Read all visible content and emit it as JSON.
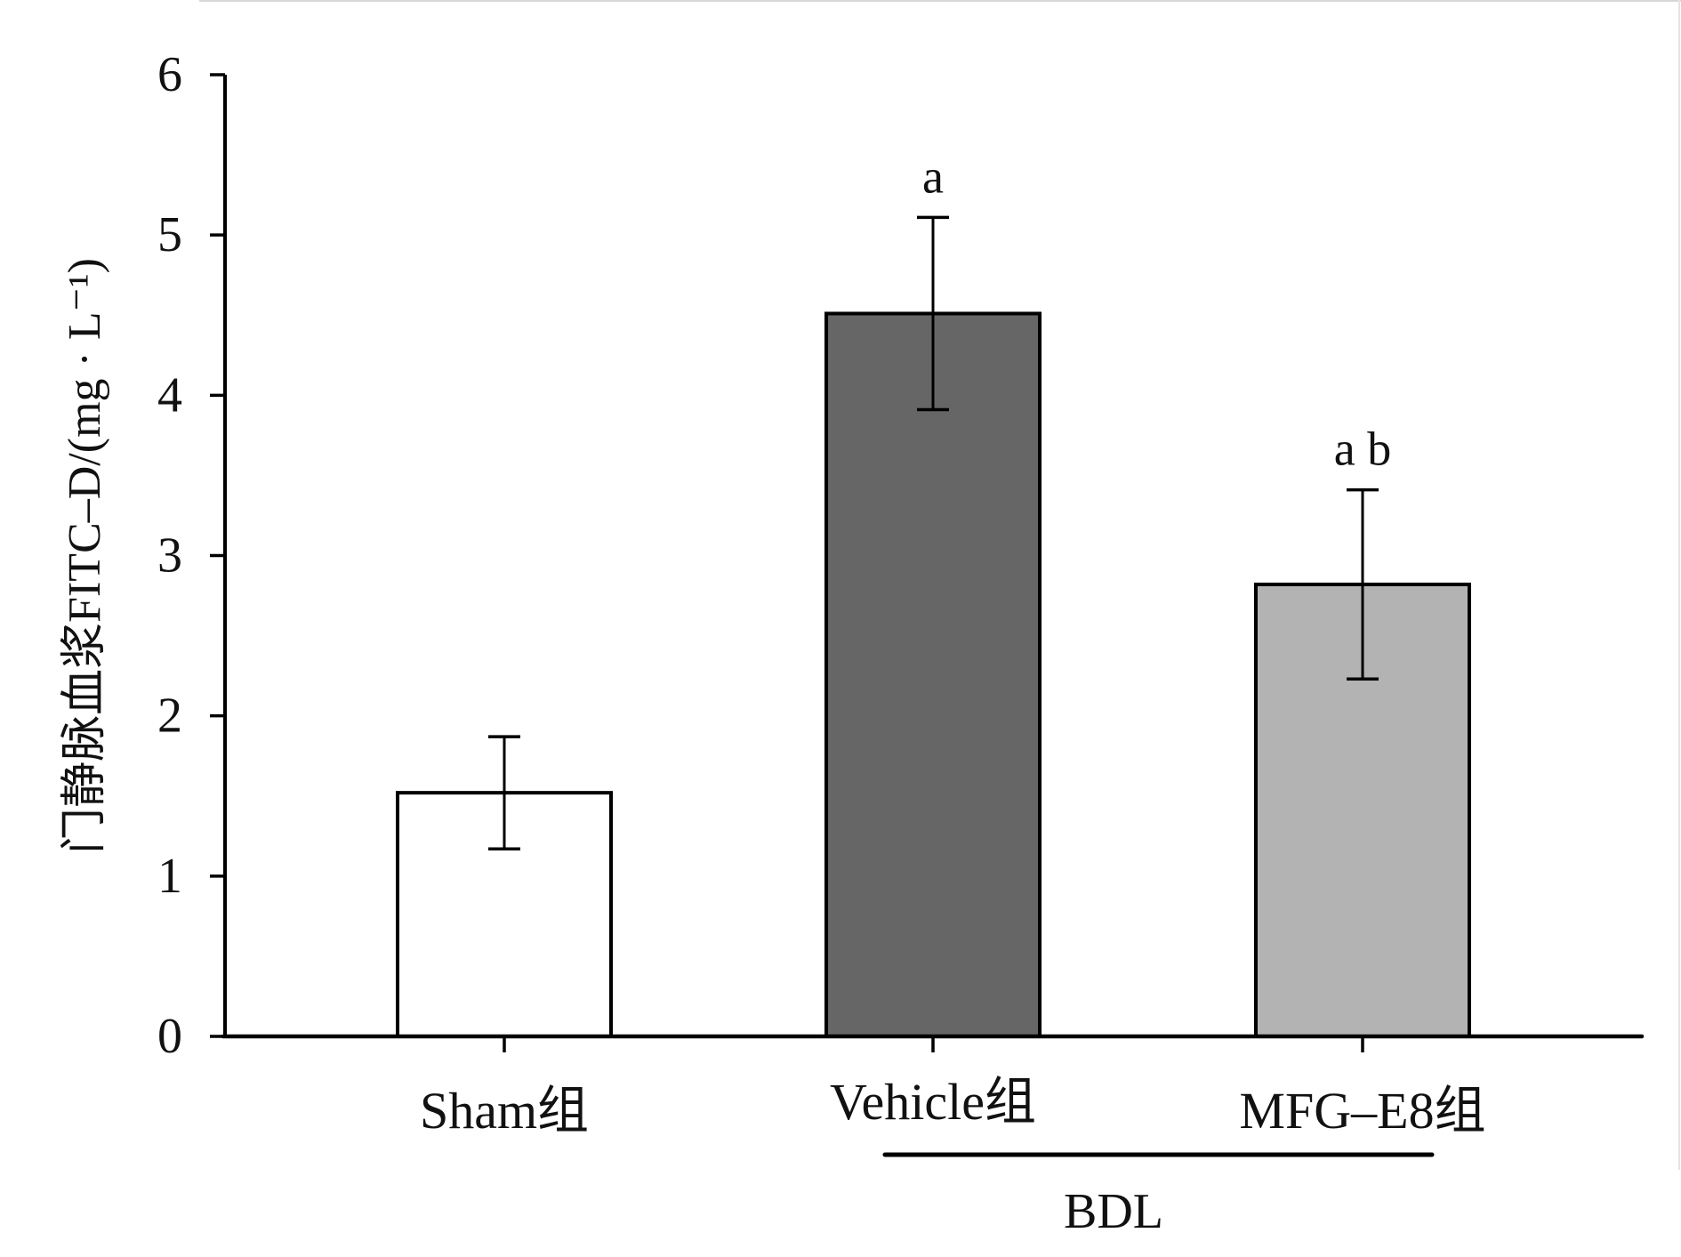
{
  "chart_data": {
    "type": "bar",
    "title": "",
    "xlabel": "",
    "ylabel": "门静脉血浆FITC–D/(mg · L⁻¹)",
    "ylim": [
      0,
      6
    ],
    "yticks": [
      0,
      1,
      2,
      3,
      4,
      5,
      6
    ],
    "ytick_labels": [
      "0",
      "1",
      "2",
      "3",
      "4",
      "5",
      "6"
    ],
    "categories": [
      "Sham组",
      "Vehicle组",
      "MFG–E8组"
    ],
    "values": [
      1.52,
      4.51,
      2.82
    ],
    "errors": [
      0.35,
      0.6,
      0.59
    ],
    "significance": [
      "",
      "a",
      "a b"
    ],
    "bar_colors": [
      "#ffffff",
      "#666666",
      "#b3b3b3"
    ],
    "group_bracket": {
      "label": "BDL",
      "spans": [
        "Vehicle组",
        "MFG–E8组"
      ]
    },
    "grid": false,
    "legend": "none"
  }
}
